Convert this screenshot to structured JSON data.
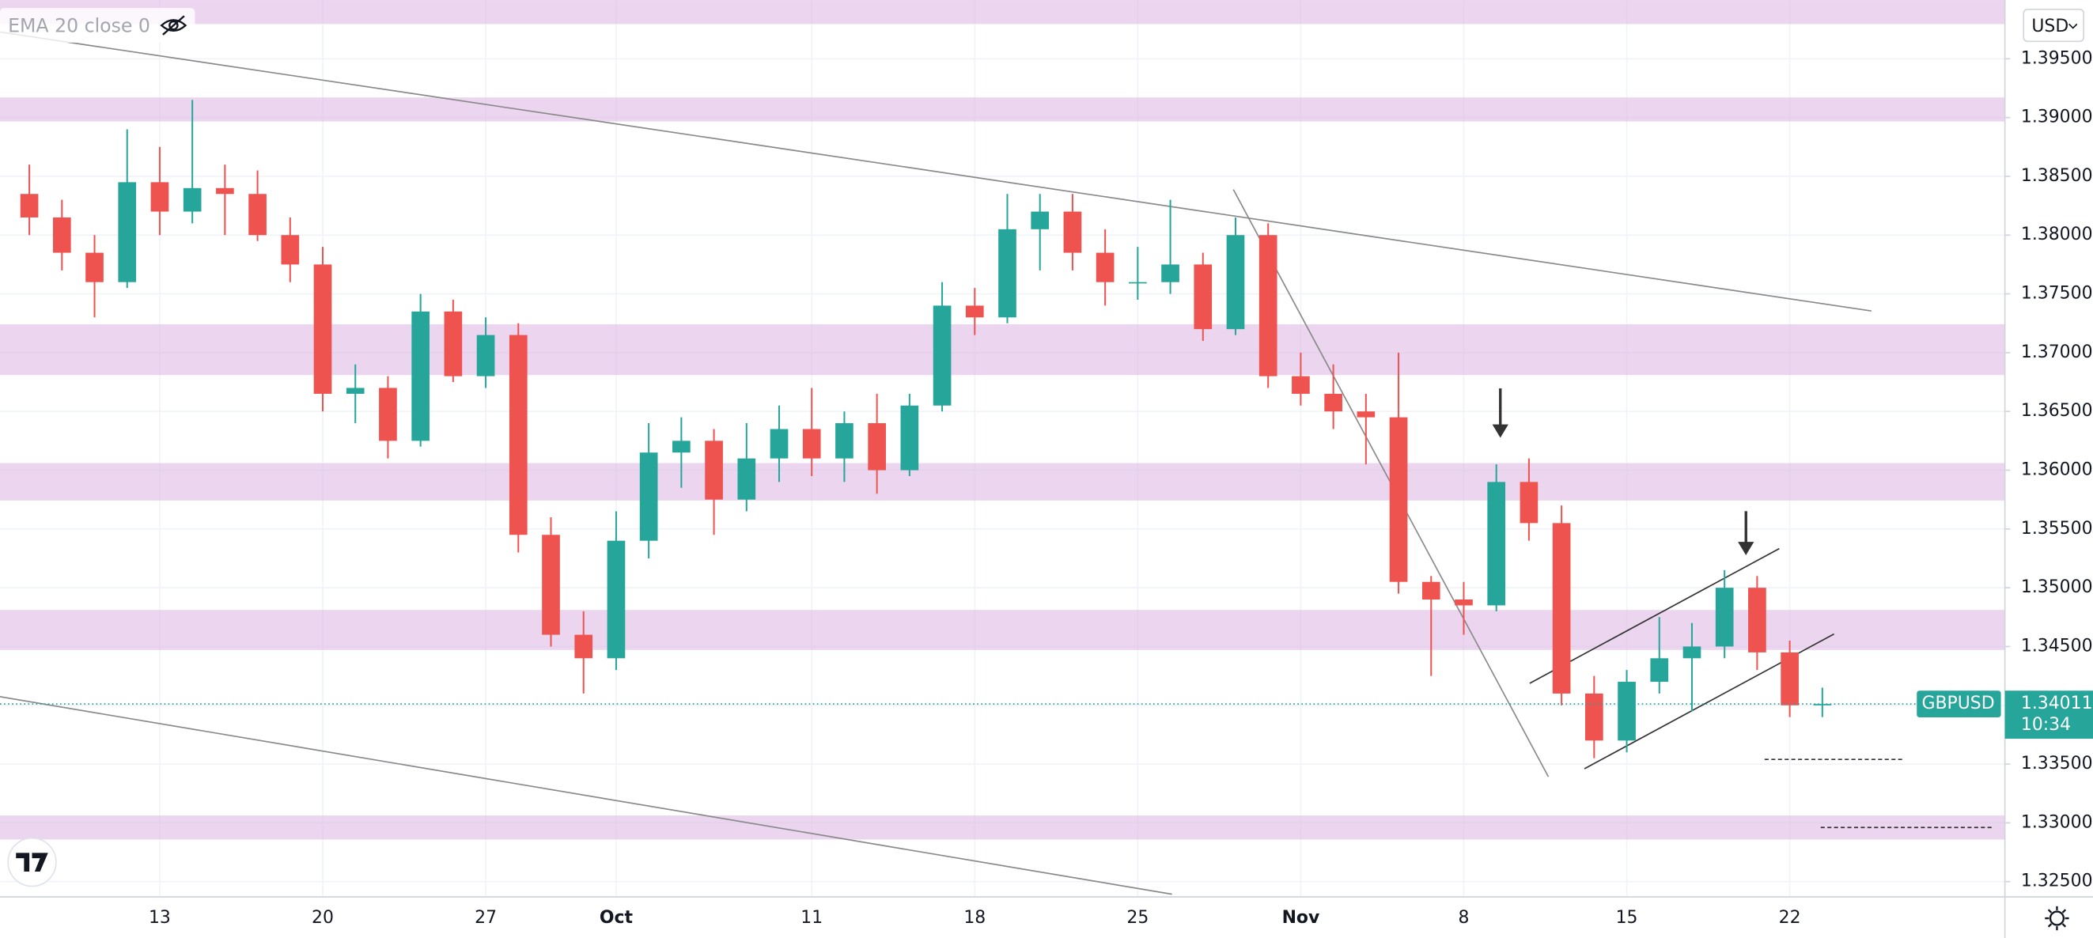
{
  "chart_data": {
    "type": "candlestick",
    "symbol": "GBPUSD",
    "currency": "USD",
    "indicator": "EMA 20 close 0",
    "countdown": "10:34",
    "last_price": 1.34011,
    "up_color": "#26a69a",
    "down_color": "#ef5350",
    "x": [
      -4,
      -3,
      -2,
      -1,
      0,
      1,
      2,
      3,
      4,
      5,
      6,
      7,
      8,
      9,
      10,
      11,
      12,
      13,
      14,
      15,
      16,
      17,
      18,
      19,
      20,
      21,
      22,
      23,
      24,
      25,
      26,
      27,
      28,
      29,
      30,
      31,
      32,
      33,
      34,
      35,
      36,
      37,
      38,
      39,
      40,
      41,
      42,
      43,
      44,
      45,
      46,
      47,
      48,
      49,
      50,
      51
    ],
    "open": [
      1.3835,
      1.3815,
      1.3785,
      1.376,
      1.3845,
      1.382,
      1.384,
      1.3835,
      1.38,
      1.3775,
      1.3665,
      1.367,
      1.3625,
      1.3735,
      1.368,
      1.3715,
      1.3545,
      1.346,
      1.344,
      1.354,
      1.3615,
      1.3625,
      1.3575,
      1.361,
      1.3635,
      1.361,
      1.364,
      1.36,
      1.3655,
      1.374,
      1.373,
      1.3805,
      1.382,
      1.3785,
      1.376,
      1.376,
      1.3775,
      1.372,
      1.38,
      1.368,
      1.3665,
      1.365,
      1.3645,
      1.3505,
      1.349,
      1.3485,
      1.359,
      1.3555,
      1.341,
      1.337,
      1.342,
      1.344,
      1.345,
      1.35,
      1.3445,
      1.34
    ],
    "high": [
      1.386,
      1.383,
      1.38,
      1.389,
      1.3875,
      1.3915,
      1.386,
      1.3855,
      1.3815,
      1.379,
      1.369,
      1.368,
      1.375,
      1.3745,
      1.373,
      1.3725,
      1.356,
      1.348,
      1.3565,
      1.364,
      1.3645,
      1.3635,
      1.364,
      1.3655,
      1.367,
      1.365,
      1.3665,
      1.3665,
      1.376,
      1.3755,
      1.3835,
      1.3835,
      1.3835,
      1.3805,
      1.379,
      1.383,
      1.3785,
      1.3815,
      1.381,
      1.37,
      1.369,
      1.3665,
      1.37,
      1.351,
      1.3505,
      1.3605,
      1.361,
      1.357,
      1.3425,
      1.343,
      1.3475,
      1.347,
      1.3515,
      1.351,
      1.3455,
      1.3415
    ],
    "low": [
      1.38,
      1.377,
      1.373,
      1.3755,
      1.38,
      1.381,
      1.38,
      1.3795,
      1.376,
      1.365,
      1.364,
      1.361,
      1.362,
      1.3675,
      1.367,
      1.353,
      1.345,
      1.341,
      1.343,
      1.3525,
      1.3585,
      1.3545,
      1.3565,
      1.359,
      1.3595,
      1.359,
      1.358,
      1.3595,
      1.365,
      1.3715,
      1.3725,
      1.377,
      1.377,
      1.374,
      1.3745,
      1.375,
      1.371,
      1.3715,
      1.367,
      1.3655,
      1.3635,
      1.3605,
      1.3495,
      1.3425,
      1.346,
      1.348,
      1.354,
      1.34,
      1.3355,
      1.336,
      1.341,
      1.3395,
      1.344,
      1.343,
      1.339,
      1.339
    ],
    "close": [
      1.3815,
      1.3785,
      1.376,
      1.3845,
      1.382,
      1.384,
      1.3835,
      1.38,
      1.3775,
      1.3665,
      1.367,
      1.3625,
      1.3735,
      1.368,
      1.3715,
      1.3545,
      1.346,
      1.344,
      1.354,
      1.3615,
      1.3625,
      1.3575,
      1.361,
      1.3635,
      1.361,
      1.364,
      1.36,
      1.3655,
      1.374,
      1.373,
      1.3805,
      1.382,
      1.3785,
      1.376,
      1.376,
      1.3775,
      1.372,
      1.38,
      1.368,
      1.3665,
      1.365,
      1.3645,
      1.3505,
      1.349,
      1.3485,
      1.359,
      1.3555,
      1.341,
      1.337,
      1.342,
      1.344,
      1.345,
      1.35,
      1.3445,
      1.34,
      1.34011
    ],
    "xlim": [
      -4.9,
      56.6
    ],
    "xticks": [
      {
        "value": 0,
        "label": "13"
      },
      {
        "value": 5,
        "label": "20"
      },
      {
        "value": 10,
        "label": "27"
      },
      {
        "value": 14,
        "label": "Oct"
      },
      {
        "value": 20,
        "label": "11"
      },
      {
        "value": 25,
        "label": "18"
      },
      {
        "value": 30,
        "label": "25"
      },
      {
        "value": 35,
        "label": "Nov"
      },
      {
        "value": 40,
        "label": "8"
      },
      {
        "value": 45,
        "label": "15"
      },
      {
        "value": 50,
        "label": "22"
      }
    ],
    "ylim": [
      1.3237,
      1.4
    ],
    "yticks": [
      {
        "value": 1.395,
        "label": "1.39500"
      },
      {
        "value": 1.39,
        "label": "1.39000"
      },
      {
        "value": 1.385,
        "label": "1.38500"
      },
      {
        "value": 1.38,
        "label": "1.38000"
      },
      {
        "value": 1.375,
        "label": "1.37500"
      },
      {
        "value": 1.37,
        "label": "1.37000"
      },
      {
        "value": 1.365,
        "label": "1.36500"
      },
      {
        "value": 1.36,
        "label": "1.36000"
      },
      {
        "value": 1.355,
        "label": "1.35500"
      },
      {
        "value": 1.35,
        "label": "1.35000"
      },
      {
        "value": 1.345,
        "label": "1.34500"
      },
      {
        "value": 1.34,
        "label": "1.34000"
      },
      {
        "value": 1.335,
        "label": "1.33500"
      },
      {
        "value": 1.33,
        "label": "1.33000"
      },
      {
        "value": 1.325,
        "label": "1.32500"
      }
    ],
    "grid": true
  }
}
